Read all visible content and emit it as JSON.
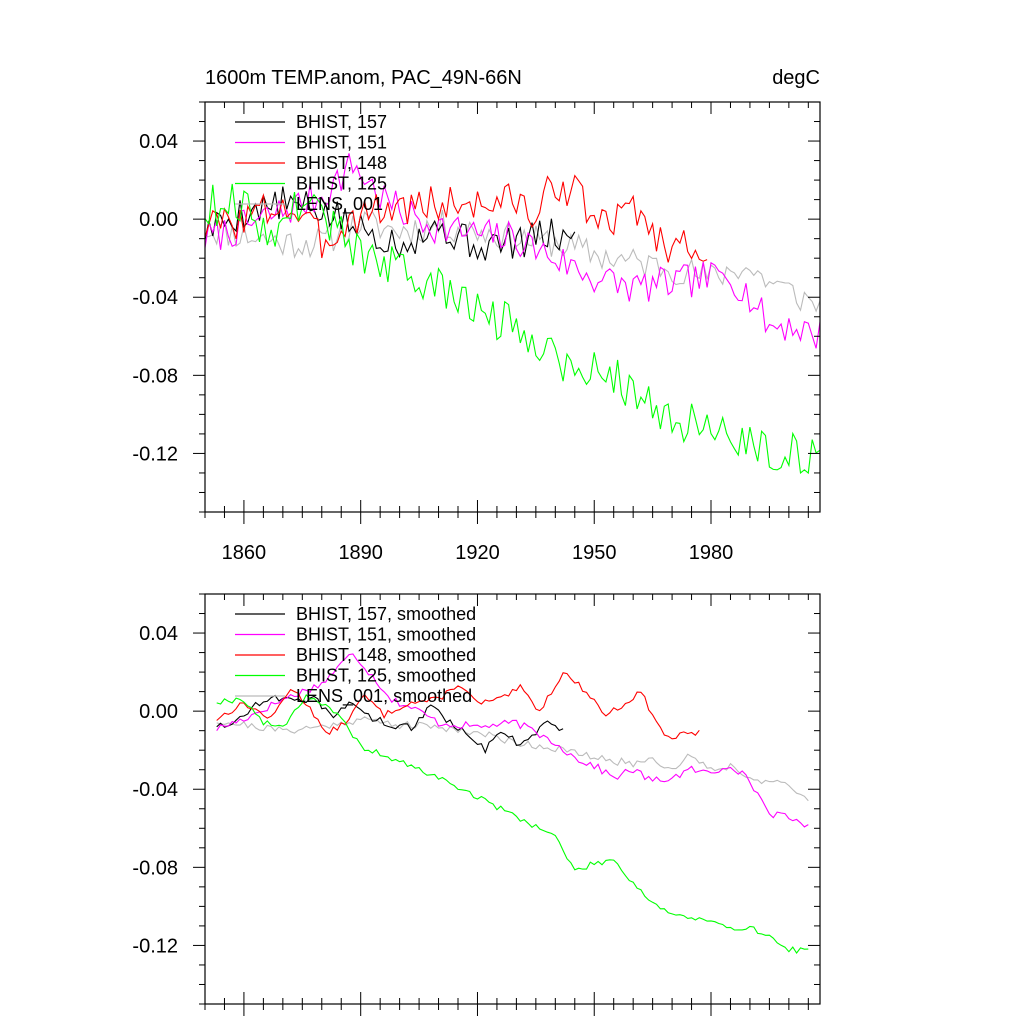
{
  "chart_data": [
    {
      "type": "line",
      "title": "1600m TEMP.anom, PAC_49N-66N",
      "units": "degC",
      "xlim": [
        1850,
        2008
      ],
      "ylim": [
        -0.15,
        0.06
      ],
      "x_ticks": [
        1860,
        1890,
        1920,
        1950,
        1980
      ],
      "y_ticks": [
        0.04,
        0.0,
        -0.04,
        -0.08,
        -0.12
      ],
      "y_tick_labels": [
        "0.04",
        "0.00",
        "-0.04",
        "-0.08",
        "-0.12"
      ],
      "colors": {
        "b157": "#000000",
        "b151": "#ff00ff",
        "b148": "#ff0000",
        "b125": "#00ff00",
        "lens": "#bbbbbb"
      },
      "legend": [
        {
          "label": "BHIST, 157",
          "key": "b157"
        },
        {
          "label": "BHIST, 151",
          "key": "b151"
        },
        {
          "label": "BHIST, 148",
          "key": "b148"
        },
        {
          "label": "BHIST, 125",
          "key": "b125"
        },
        {
          "label": "LENS_001",
          "key": "lens"
        }
      ],
      "series": [
        {
          "key": "lens",
          "name": "LENS_001",
          "start": 1850,
          "end": 2008,
          "anchors": [
            [
              1850,
              -0.005
            ],
            [
              1860,
              -0.008
            ],
            [
              1870,
              -0.012
            ],
            [
              1880,
              -0.012
            ],
            [
              1890,
              -0.002
            ],
            [
              1900,
              -0.006
            ],
            [
              1910,
              -0.003
            ],
            [
              1920,
              -0.006
            ],
            [
              1930,
              -0.01
            ],
            [
              1940,
              -0.012
            ],
            [
              1950,
              -0.018
            ],
            [
              1960,
              -0.022
            ],
            [
              1970,
              -0.025
            ],
            [
              1980,
              -0.03
            ],
            [
              1988,
              -0.024
            ],
            [
              1995,
              -0.032
            ],
            [
              2000,
              -0.037
            ],
            [
              2008,
              -0.045
            ]
          ],
          "noise": 0.008,
          "seed": 11
        },
        {
          "key": "b157",
          "name": "BHIST, 157",
          "start": 1850,
          "end": 1945,
          "anchors": [
            [
              1850,
              -0.006
            ],
            [
              1860,
              0.004
            ],
            [
              1870,
              0.008
            ],
            [
              1880,
              0.004
            ],
            [
              1890,
              -0.005
            ],
            [
              1900,
              -0.012
            ],
            [
              1910,
              -0.004
            ],
            [
              1920,
              -0.014
            ],
            [
              1930,
              -0.012
            ],
            [
              1940,
              -0.008
            ],
            [
              1945,
              -0.012
            ]
          ],
          "noise": 0.009,
          "seed": 5
        },
        {
          "key": "b151",
          "name": "BHIST, 151",
          "start": 1850,
          "end": 2008,
          "anchors": [
            [
              1850,
              -0.01
            ],
            [
              1860,
              -0.004
            ],
            [
              1870,
              0.004
            ],
            [
              1880,
              0.012
            ],
            [
              1888,
              0.028
            ],
            [
              1895,
              0.012
            ],
            [
              1900,
              0.004
            ],
            [
              1910,
              -0.004
            ],
            [
              1920,
              -0.008
            ],
            [
              1930,
              -0.01
            ],
            [
              1940,
              -0.02
            ],
            [
              1950,
              -0.03
            ],
            [
              1960,
              -0.035
            ],
            [
              1970,
              -0.033
            ],
            [
              1980,
              -0.03
            ],
            [
              1985,
              -0.028
            ],
            [
              1990,
              -0.04
            ],
            [
              1995,
              -0.055
            ],
            [
              2000,
              -0.054
            ],
            [
              2008,
              -0.06
            ]
          ],
          "noise": 0.009,
          "seed": 7
        },
        {
          "key": "b148",
          "name": "BHIST, 148",
          "start": 1850,
          "end": 1979,
          "anchors": [
            [
              1850,
              -0.004
            ],
            [
              1860,
              0.0
            ],
            [
              1870,
              0.008
            ],
            [
              1875,
              0.0
            ],
            [
              1880,
              -0.012
            ],
            [
              1890,
              0.004
            ],
            [
              1900,
              0.006
            ],
            [
              1910,
              0.008
            ],
            [
              1920,
              0.008
            ],
            [
              1930,
              0.01
            ],
            [
              1935,
              0.0
            ],
            [
              1940,
              0.02
            ],
            [
              1945,
              0.014
            ],
            [
              1950,
              0.0
            ],
            [
              1955,
              -0.004
            ],
            [
              1960,
              0.01
            ],
            [
              1965,
              -0.008
            ],
            [
              1970,
              -0.014
            ],
            [
              1979,
              -0.012
            ]
          ],
          "noise": 0.01,
          "seed": 3
        },
        {
          "key": "b125",
          "name": "BHIST, 125",
          "start": 1850,
          "end": 2008,
          "anchors": [
            [
              1850,
              0.006
            ],
            [
              1858,
              0.01
            ],
            [
              1865,
              -0.004
            ],
            [
              1870,
              -0.005
            ],
            [
              1875,
              0.012
            ],
            [
              1880,
              0.004
            ],
            [
              1885,
              -0.008
            ],
            [
              1890,
              -0.018
            ],
            [
              1900,
              -0.026
            ],
            [
              1910,
              -0.036
            ],
            [
              1920,
              -0.046
            ],
            [
              1930,
              -0.056
            ],
            [
              1940,
              -0.066
            ],
            [
              1945,
              -0.082
            ],
            [
              1950,
              -0.076
            ],
            [
              1955,
              -0.078
            ],
            [
              1960,
              -0.09
            ],
            [
              1970,
              -0.102
            ],
            [
              1980,
              -0.108
            ],
            [
              1990,
              -0.113
            ],
            [
              2000,
              -0.12
            ],
            [
              2008,
              -0.125
            ]
          ],
          "noise": 0.011,
          "seed": 9
        }
      ]
    },
    {
      "type": "line",
      "title": "",
      "xlim": [
        1850,
        2008
      ],
      "ylim": [
        -0.15,
        0.06
      ],
      "x_ticks": [
        1860,
        1890,
        1920,
        1950,
        1980
      ],
      "y_ticks": [
        0.04,
        0.0,
        -0.04,
        -0.08,
        -0.12
      ],
      "y_tick_labels": [
        "0.04",
        "0.00",
        "-0.04",
        "-0.08",
        "-0.12"
      ],
      "colors": {
        "b157": "#000000",
        "b151": "#ff00ff",
        "b148": "#ff0000",
        "b125": "#00ff00",
        "lens": "#bbbbbb"
      },
      "legend": [
        {
          "label": "BHIST, 157, smoothed",
          "key": "b157"
        },
        {
          "label": "BHIST, 151, smoothed",
          "key": "b151"
        },
        {
          "label": "BHIST, 148, smoothed",
          "key": "b148"
        },
        {
          "label": "BHIST, 125, smoothed",
          "key": "b125"
        },
        {
          "label": "LENS_001, smoothed",
          "key": "lens"
        }
      ],
      "series": [
        {
          "key": "lens",
          "name": "LENS_001, smoothed",
          "start": 1853,
          "end": 2005,
          "anchors": [
            [
              1853,
              -0.005
            ],
            [
              1860,
              -0.007
            ],
            [
              1870,
              -0.01
            ],
            [
              1880,
              -0.008
            ],
            [
              1890,
              -0.004
            ],
            [
              1900,
              -0.007
            ],
            [
              1910,
              -0.008
            ],
            [
              1920,
              -0.011
            ],
            [
              1930,
              -0.016
            ],
            [
              1940,
              -0.019
            ],
            [
              1950,
              -0.024
            ],
            [
              1960,
              -0.027
            ],
            [
              1965,
              -0.024
            ],
            [
              1970,
              -0.03
            ],
            [
              1975,
              -0.022
            ],
            [
              1980,
              -0.03
            ],
            [
              1985,
              -0.028
            ],
            [
              1990,
              -0.034
            ],
            [
              1995,
              -0.036
            ],
            [
              2000,
              -0.039
            ],
            [
              2005,
              -0.045
            ]
          ],
          "noise": 0.002,
          "seed": 21
        },
        {
          "key": "b157",
          "name": "BHIST, 157, smoothed",
          "start": 1853,
          "end": 1942,
          "anchors": [
            [
              1853,
              -0.007
            ],
            [
              1858,
              -0.006
            ],
            [
              1863,
              0.004
            ],
            [
              1868,
              0.008
            ],
            [
              1873,
              0.004
            ],
            [
              1878,
              0.006
            ],
            [
              1883,
              -0.002
            ],
            [
              1888,
              0.004
            ],
            [
              1893,
              -0.004
            ],
            [
              1898,
              -0.007
            ],
            [
              1903,
              -0.008
            ],
            [
              1908,
              0.002
            ],
            [
              1913,
              -0.006
            ],
            [
              1918,
              -0.012
            ],
            [
              1922,
              -0.02
            ],
            [
              1926,
              -0.01
            ],
            [
              1930,
              -0.016
            ],
            [
              1934,
              -0.013
            ],
            [
              1938,
              -0.006
            ],
            [
              1942,
              -0.01
            ]
          ],
          "noise": 0.002,
          "seed": 15
        },
        {
          "key": "b151",
          "name": "BHIST, 151, smoothed",
          "start": 1853,
          "end": 2005,
          "anchors": [
            [
              1853,
              -0.009
            ],
            [
              1860,
              -0.004
            ],
            [
              1870,
              0.006
            ],
            [
              1880,
              0.014
            ],
            [
              1888,
              0.03
            ],
            [
              1893,
              0.018
            ],
            [
              1898,
              0.006
            ],
            [
              1905,
              0.0
            ],
            [
              1910,
              -0.006
            ],
            [
              1920,
              -0.008
            ],
            [
              1930,
              -0.006
            ],
            [
              1940,
              -0.016
            ],
            [
              1945,
              -0.024
            ],
            [
              1950,
              -0.028
            ],
            [
              1955,
              -0.034
            ],
            [
              1960,
              -0.03
            ],
            [
              1965,
              -0.036
            ],
            [
              1970,
              -0.034
            ],
            [
              1975,
              -0.03
            ],
            [
              1980,
              -0.032
            ],
            [
              1985,
              -0.027
            ],
            [
              1990,
              -0.036
            ],
            [
              1995,
              -0.052
            ],
            [
              2000,
              -0.055
            ],
            [
              2005,
              -0.058
            ]
          ],
          "noise": 0.002,
          "seed": 17
        },
        {
          "key": "b148",
          "name": "BHIST, 148, smoothed",
          "start": 1853,
          "end": 1977,
          "anchors": [
            [
              1853,
              -0.004
            ],
            [
              1860,
              0.004
            ],
            [
              1867,
              -0.004
            ],
            [
              1872,
              0.012
            ],
            [
              1877,
              0.002
            ],
            [
              1881,
              -0.012
            ],
            [
              1886,
              -0.006
            ],
            [
              1891,
              0.008
            ],
            [
              1896,
              -0.002
            ],
            [
              1902,
              0.004
            ],
            [
              1910,
              0.006
            ],
            [
              1915,
              0.014
            ],
            [
              1920,
              0.004
            ],
            [
              1926,
              0.006
            ],
            [
              1931,
              0.012
            ],
            [
              1936,
              0.0
            ],
            [
              1942,
              0.02
            ],
            [
              1948,
              0.01
            ],
            [
              1953,
              -0.002
            ],
            [
              1958,
              0.004
            ],
            [
              1962,
              0.01
            ],
            [
              1966,
              -0.006
            ],
            [
              1969,
              -0.014
            ],
            [
              1973,
              -0.012
            ],
            [
              1977,
              -0.011
            ]
          ],
          "noise": 0.0015,
          "seed": 13
        },
        {
          "key": "b125",
          "name": "BHIST, 125, smoothed",
          "start": 1853,
          "end": 2005,
          "anchors": [
            [
              1853,
              0.005
            ],
            [
              1860,
              0.006
            ],
            [
              1865,
              -0.006
            ],
            [
              1870,
              -0.008
            ],
            [
              1876,
              0.008
            ],
            [
              1880,
              0.004
            ],
            [
              1885,
              -0.004
            ],
            [
              1890,
              -0.018
            ],
            [
              1900,
              -0.026
            ],
            [
              1910,
              -0.034
            ],
            [
              1920,
              -0.044
            ],
            [
              1930,
              -0.054
            ],
            [
              1940,
              -0.064
            ],
            [
              1945,
              -0.082
            ],
            [
              1950,
              -0.078
            ],
            [
              1955,
              -0.076
            ],
            [
              1960,
              -0.088
            ],
            [
              1965,
              -0.098
            ],
            [
              1970,
              -0.104
            ],
            [
              1980,
              -0.108
            ],
            [
              1985,
              -0.112
            ],
            [
              1990,
              -0.11
            ],
            [
              1995,
              -0.116
            ],
            [
              2000,
              -0.122
            ],
            [
              2005,
              -0.123
            ]
          ],
          "noise": 0.0015,
          "seed": 19
        }
      ]
    }
  ]
}
